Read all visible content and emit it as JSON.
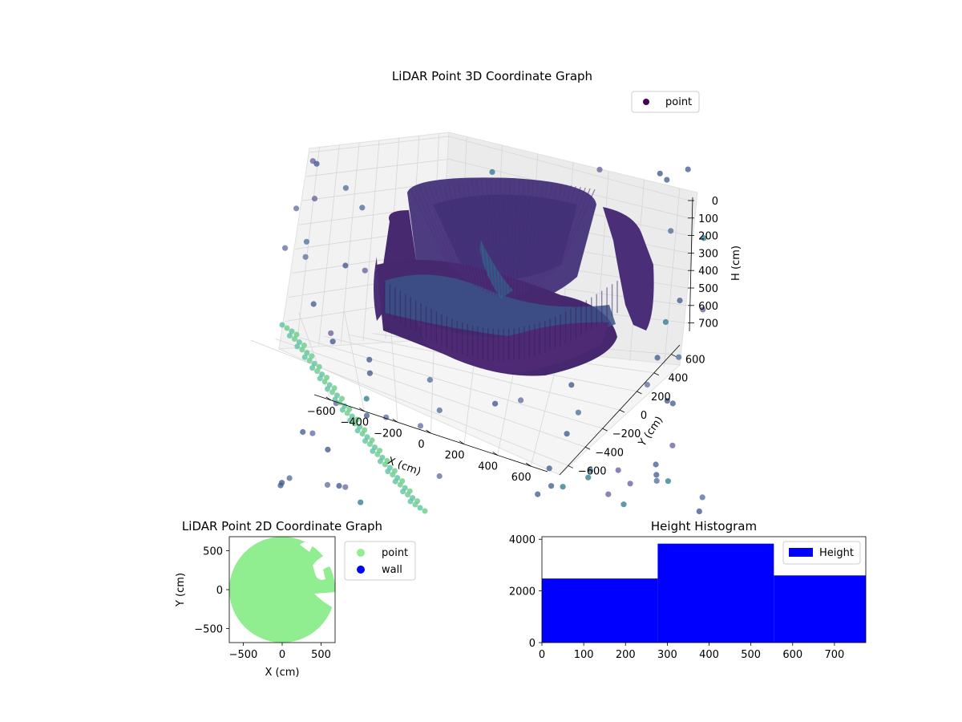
{
  "chart_data": [
    {
      "type": "scatter",
      "projection": "3d",
      "title": "LiDAR Point 3D Coordinate Graph",
      "xlabel": "X (cm)",
      "ylabel": "Y (cm)",
      "zlabel": "H (cm)",
      "xlim": [
        -700,
        700
      ],
      "ylim": [
        -700,
        700
      ],
      "zlim": [
        750,
        0
      ],
      "xticks": [
        "−600",
        "−400",
        "−200",
        "0",
        "200",
        "400",
        "600"
      ],
      "yticks": [
        "−600",
        "−400",
        "−200",
        "0",
        "200",
        "400",
        "600"
      ],
      "zticks": [
        "0",
        "100",
        "200",
        "300",
        "400",
        "500",
        "600",
        "700"
      ],
      "grid": true,
      "colormap": "viridis",
      "legend": {
        "position": "top-right",
        "entries": [
          {
            "label": "point",
            "color": "#440154"
          }
        ]
      },
      "points_sample": [
        {
          "x": -600,
          "y": -600,
          "h": 700
        },
        {
          "x": -500,
          "y": -650,
          "h": 650
        },
        {
          "x": 600,
          "y": -600,
          "h": 700
        },
        {
          "x": 500,
          "y": 600,
          "h": 650
        },
        {
          "x": -600,
          "y": 500,
          "h": 650
        },
        {
          "x": 0,
          "y": 300,
          "h": 100
        },
        {
          "x": -400,
          "y": 0,
          "h": 300
        },
        {
          "x": 400,
          "y": 0,
          "h": 300
        },
        {
          "x": 0,
          "y": -400,
          "h": 300
        },
        {
          "x": 100,
          "y": 0,
          "h": 400
        }
      ]
    },
    {
      "type": "scatter",
      "title": "LiDAR Point 2D Coordinate Graph",
      "xlabel": "X (cm)",
      "ylabel": "Y (cm)",
      "xlim": [
        -680,
        680
      ],
      "ylim": [
        -680,
        680
      ],
      "xticks": [
        "−500",
        "0",
        "500"
      ],
      "yticks": [
        "−500",
        "0",
        "500"
      ],
      "legend": {
        "position": "outside-right",
        "entries": [
          {
            "label": "point",
            "color": "#90ee90"
          },
          {
            "label": "wall",
            "color": "#0000ff"
          }
        ]
      },
      "series": [
        {
          "name": "point",
          "color": "#90ee90",
          "shape": "filled disc, radius ≈ 680"
        },
        {
          "name": "wall",
          "color": "#0000ff",
          "points": []
        }
      ]
    },
    {
      "type": "bar",
      "subtype": "histogram",
      "title": "Height Histogram",
      "xlim": [
        0,
        775
      ],
      "ylim": [
        0,
        4100
      ],
      "xticks": [
        "0",
        "100",
        "200",
        "300",
        "400",
        "500",
        "600",
        "700"
      ],
      "yticks": [
        "0",
        "2000",
        "4000"
      ],
      "color": "#0000ff",
      "legend": {
        "position": "top-right",
        "entries": [
          {
            "label": "Height",
            "color": "#0000ff"
          }
        ]
      },
      "bins": [
        {
          "x0": 0,
          "x1": 277,
          "count": 2480
        },
        {
          "x0": 277,
          "x1": 555,
          "count": 3830
        },
        {
          "x0": 555,
          "x1": 775,
          "count": 2600
        }
      ]
    }
  ]
}
